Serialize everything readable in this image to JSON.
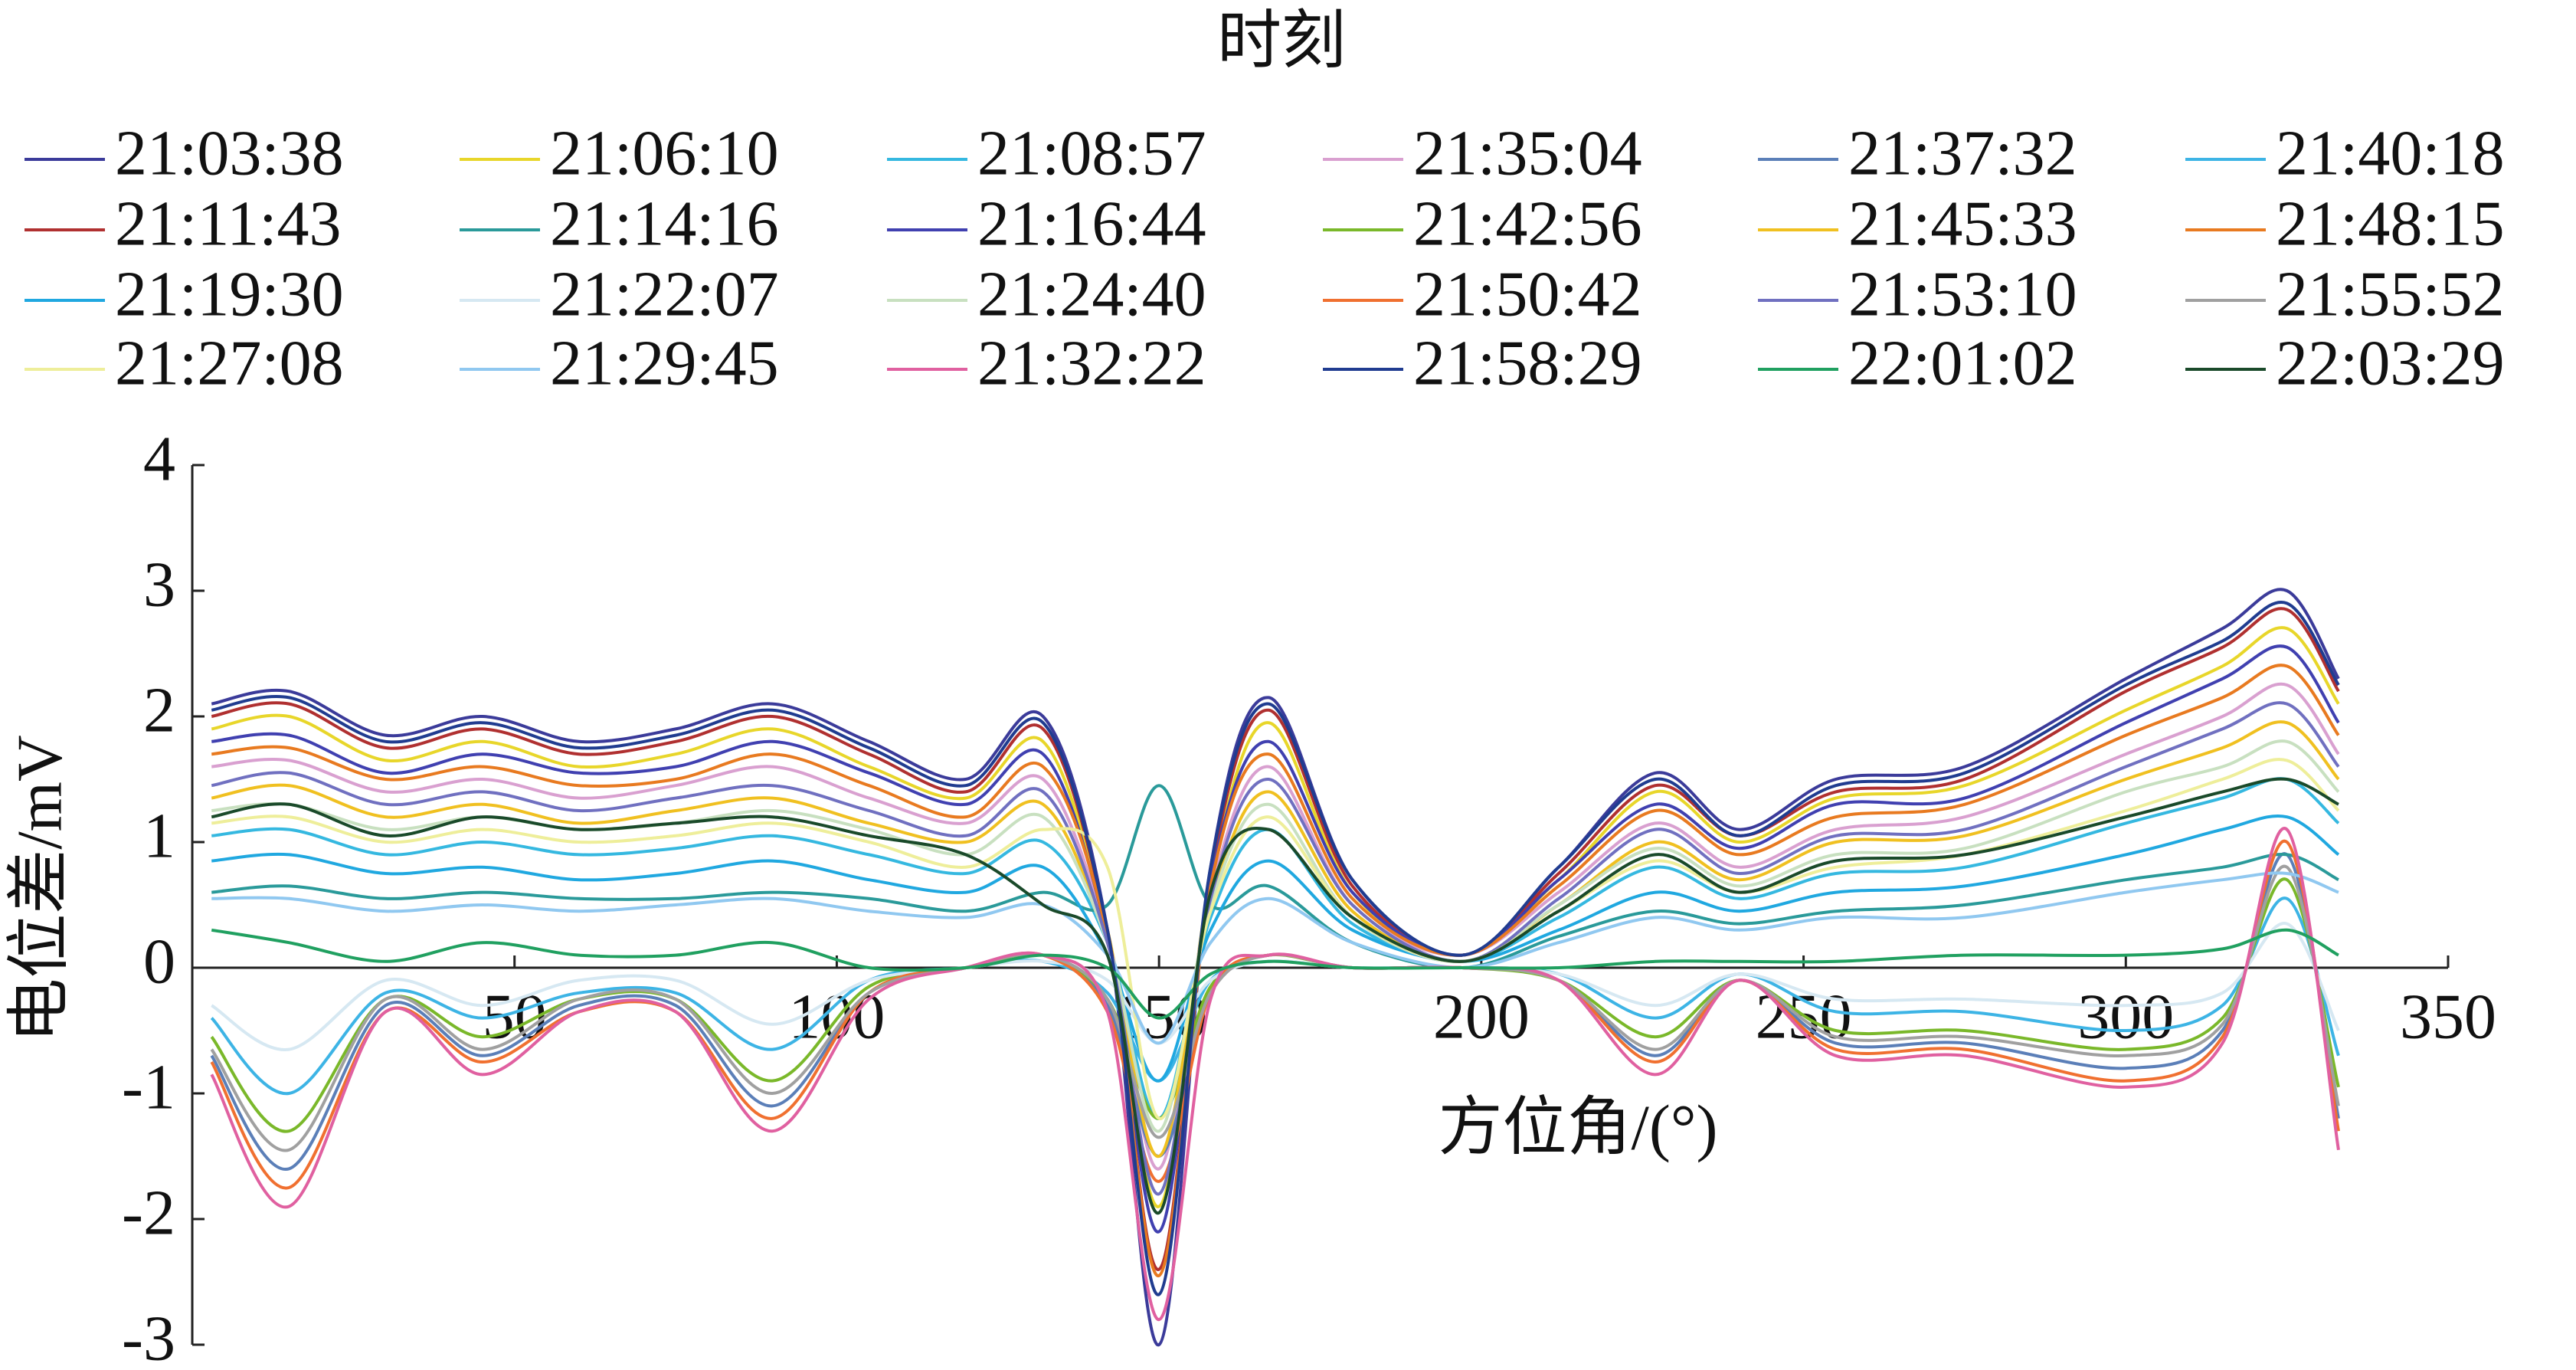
{
  "chart_data": {
    "type": "line",
    "legend_title": "时刻",
    "xlabel": "方位角/(°)",
    "ylabel": "电位差/mV",
    "xlim": [
      0,
      350
    ],
    "ylim": [
      -3,
      4
    ],
    "xticks": [
      50,
      100,
      150,
      200,
      250,
      300,
      350
    ],
    "yticks": [
      -3,
      -2,
      -1,
      0,
      1,
      2,
      3,
      4
    ],
    "x": [
      3,
      15,
      30,
      45,
      60,
      75,
      90,
      105,
      120,
      132,
      142,
      150,
      158,
      167,
      180,
      197,
      212,
      227,
      240,
      255,
      275,
      300,
      315,
      325,
      333
    ],
    "series": [
      {
        "name": "21:03:38",
        "color": "#3b3b9a",
        "values": [
          2.1,
          2.2,
          1.85,
          2.0,
          1.8,
          1.9,
          2.1,
          1.8,
          1.5,
          2.0,
          0.3,
          -3.0,
          0.8,
          2.15,
          0.7,
          0.1,
          0.8,
          1.55,
          1.1,
          1.5,
          1.6,
          2.3,
          2.7,
          3.0,
          2.3
        ]
      },
      {
        "name": "21:06:10",
        "color": "#e8d62a",
        "values": [
          1.9,
          2.0,
          1.65,
          1.8,
          1.6,
          1.7,
          1.9,
          1.6,
          1.35,
          1.8,
          0.3,
          -1.9,
          0.7,
          1.95,
          0.6,
          0.1,
          0.7,
          1.4,
          1.0,
          1.35,
          1.45,
          2.05,
          2.4,
          2.7,
          2.1
        ]
      },
      {
        "name": "21:08:57",
        "color": "#35b8e0",
        "values": [
          1.05,
          1.1,
          0.9,
          1.0,
          0.9,
          0.95,
          1.05,
          0.9,
          0.75,
          1.0,
          0.2,
          -1.2,
          0.4,
          1.1,
          0.35,
          0.05,
          0.4,
          0.8,
          0.55,
          0.75,
          0.8,
          1.15,
          1.35,
          1.5,
          1.15
        ]
      },
      {
        "name": "21:35:04",
        "color": "#d9a0d0",
        "values": [
          1.6,
          1.65,
          1.4,
          1.5,
          1.35,
          1.45,
          1.6,
          1.35,
          1.15,
          1.5,
          0.25,
          -1.6,
          0.6,
          1.6,
          0.5,
          0.1,
          0.6,
          1.15,
          0.8,
          1.1,
          1.2,
          1.7,
          2.0,
          2.25,
          1.7
        ]
      },
      {
        "name": "21:37:32",
        "color": "#5b7fb8",
        "values": [
          -0.7,
          -1.6,
          -0.3,
          -0.7,
          -0.3,
          -0.3,
          -1.1,
          -0.2,
          0,
          0.1,
          -0.3,
          -1.5,
          -0.2,
          0.1,
          0,
          0,
          -0.1,
          -0.7,
          -0.1,
          -0.6,
          -0.6,
          -0.8,
          -0.5,
          0.9,
          -1.2
        ]
      },
      {
        "name": "21:40:18",
        "color": "#3db4e5",
        "values": [
          -0.4,
          -1.0,
          -0.2,
          -0.4,
          -0.2,
          -0.2,
          -0.65,
          -0.1,
          0,
          0.05,
          -0.2,
          -0.9,
          -0.1,
          0.05,
          0,
          0,
          -0.05,
          -0.4,
          -0.05,
          -0.35,
          -0.35,
          -0.5,
          -0.3,
          0.55,
          -0.7
        ]
      },
      {
        "name": "21:11:43",
        "color": "#b03030",
        "values": [
          2.0,
          2.1,
          1.75,
          1.9,
          1.7,
          1.8,
          2.0,
          1.7,
          1.4,
          1.9,
          0.3,
          -2.4,
          0.75,
          2.05,
          0.65,
          0.1,
          0.75,
          1.45,
          1.05,
          1.4,
          1.5,
          2.2,
          2.55,
          2.85,
          2.2
        ]
      },
      {
        "name": "21:14:16",
        "color": "#2a9a9a",
        "values": [
          0.6,
          0.65,
          0.55,
          0.6,
          0.55,
          0.55,
          0.6,
          0.55,
          0.45,
          0.6,
          0.5,
          1.45,
          0.5,
          0.65,
          0.2,
          0,
          0.25,
          0.45,
          0.35,
          0.45,
          0.5,
          0.7,
          0.8,
          0.9,
          0.7
        ]
      },
      {
        "name": "21:16:44",
        "color": "#4040b0",
        "values": [
          1.8,
          1.85,
          1.55,
          1.7,
          1.55,
          1.6,
          1.8,
          1.55,
          1.3,
          1.7,
          0.25,
          -2.1,
          0.7,
          1.8,
          0.6,
          0.1,
          0.7,
          1.3,
          0.95,
          1.3,
          1.35,
          1.95,
          2.3,
          2.55,
          1.95
        ]
      },
      {
        "name": "21:42:56",
        "color": "#7ab82a",
        "values": [
          -0.55,
          -1.3,
          -0.25,
          -0.55,
          -0.25,
          -0.25,
          -0.9,
          -0.15,
          0,
          0.1,
          -0.25,
          -1.2,
          -0.15,
          0.1,
          0,
          0,
          -0.1,
          -0.55,
          -0.1,
          -0.5,
          -0.5,
          -0.65,
          -0.4,
          0.7,
          -0.95
        ]
      },
      {
        "name": "21:45:33",
        "color": "#f0c020",
        "values": [
          1.35,
          1.45,
          1.2,
          1.3,
          1.15,
          1.25,
          1.35,
          1.15,
          1.0,
          1.3,
          0.2,
          -1.5,
          0.5,
          1.4,
          0.45,
          0.05,
          0.5,
          1.0,
          0.7,
          1.0,
          1.05,
          1.5,
          1.75,
          1.95,
          1.5
        ]
      },
      {
        "name": "21:48:15",
        "color": "#e87a20",
        "values": [
          1.7,
          1.75,
          1.5,
          1.6,
          1.45,
          1.5,
          1.7,
          1.45,
          1.2,
          1.6,
          0.25,
          -2.45,
          0.65,
          1.7,
          0.55,
          0.1,
          0.65,
          1.25,
          0.9,
          1.2,
          1.3,
          1.85,
          2.15,
          2.4,
          1.85
        ]
      },
      {
        "name": "21:19:30",
        "color": "#20a8e0",
        "values": [
          0.85,
          0.9,
          0.75,
          0.8,
          0.7,
          0.75,
          0.85,
          0.7,
          0.6,
          0.8,
          0.1,
          -0.9,
          0.3,
          0.85,
          0.3,
          0.05,
          0.3,
          0.6,
          0.45,
          0.6,
          0.65,
          0.9,
          1.1,
          1.2,
          0.9
        ]
      },
      {
        "name": "21:22:07",
        "color": "#d6e8f2",
        "values": [
          -0.3,
          -0.65,
          -0.1,
          -0.3,
          -0.1,
          -0.1,
          -0.45,
          -0.1,
          0,
          0.05,
          -0.1,
          -0.6,
          -0.1,
          0.05,
          0,
          0,
          -0.05,
          -0.3,
          -0.05,
          -0.25,
          -0.25,
          -0.3,
          -0.2,
          0.35,
          -0.5
        ]
      },
      {
        "name": "21:24:40",
        "color": "#c8e0c0",
        "values": [
          1.25,
          1.3,
          1.1,
          1.2,
          1.1,
          1.15,
          1.25,
          1.1,
          0.9,
          1.2,
          0.2,
          -1.3,
          0.5,
          1.3,
          0.4,
          0.05,
          0.5,
          0.95,
          0.65,
          0.9,
          0.95,
          1.4,
          1.6,
          1.8,
          1.4
        ]
      },
      {
        "name": "21:50:42",
        "color": "#f07030",
        "values": [
          -0.75,
          -1.75,
          -0.35,
          -0.75,
          -0.35,
          -0.35,
          -1.2,
          -0.2,
          0,
          0.1,
          -0.35,
          -1.7,
          -0.2,
          0.1,
          0,
          0,
          -0.1,
          -0.75,
          -0.1,
          -0.65,
          -0.65,
          -0.9,
          -0.55,
          1.0,
          -1.3
        ]
      },
      {
        "name": "21:53:10",
        "color": "#7070c0",
        "values": [
          1.45,
          1.55,
          1.3,
          1.4,
          1.25,
          1.35,
          1.45,
          1.25,
          1.05,
          1.4,
          0.2,
          -1.8,
          0.55,
          1.5,
          0.5,
          0.05,
          0.55,
          1.1,
          0.75,
          1.05,
          1.1,
          1.6,
          1.9,
          2.1,
          1.6
        ]
      },
      {
        "name": "21:55:52",
        "color": "#a0a0a0",
        "values": [
          -0.65,
          -1.45,
          -0.25,
          -0.65,
          -0.25,
          -0.25,
          -1.0,
          -0.2,
          0,
          0.1,
          -0.25,
          -1.35,
          -0.2,
          0.1,
          0,
          0,
          -0.1,
          -0.65,
          -0.1,
          -0.55,
          -0.55,
          -0.7,
          -0.45,
          0.8,
          -1.1
        ]
      },
      {
        "name": "21:27:08",
        "color": "#eeee9a",
        "values": [
          1.15,
          1.2,
          1.0,
          1.1,
          1.0,
          1.05,
          1.15,
          1.0,
          0.8,
          1.1,
          0.8,
          -1.2,
          0.45,
          1.2,
          0.4,
          0.05,
          0.45,
          0.85,
          0.6,
          0.8,
          0.9,
          1.25,
          1.5,
          1.65,
          1.25
        ]
      },
      {
        "name": "21:29:45",
        "color": "#90c8f0",
        "values": [
          0.55,
          0.55,
          0.45,
          0.5,
          0.45,
          0.5,
          0.55,
          0.45,
          0.4,
          0.5,
          0.1,
          -0.6,
          0.2,
          0.55,
          0.2,
          0,
          0.2,
          0.4,
          0.3,
          0.4,
          0.4,
          0.6,
          0.7,
          0.75,
          0.6
        ]
      },
      {
        "name": "21:32:22",
        "color": "#e060a0",
        "values": [
          -0.85,
          -1.9,
          -0.35,
          -0.85,
          -0.35,
          -0.35,
          -1.3,
          -0.25,
          0,
          0.1,
          -0.35,
          -2.8,
          -0.25,
          0.1,
          0,
          0,
          -0.1,
          -0.85,
          -0.1,
          -0.7,
          -0.7,
          -0.95,
          -0.6,
          1.1,
          -1.45
        ]
      },
      {
        "name": "21:58:29",
        "color": "#203c90",
        "values": [
          2.05,
          2.15,
          1.8,
          1.95,
          1.75,
          1.85,
          2.05,
          1.75,
          1.45,
          1.95,
          0.3,
          -2.6,
          0.8,
          2.1,
          0.7,
          0.1,
          0.8,
          1.5,
          1.05,
          1.45,
          1.55,
          2.25,
          2.6,
          2.9,
          2.25
        ]
      },
      {
        "name": "22:01:02",
        "color": "#20a060",
        "values": [
          0.3,
          0.2,
          0.05,
          0.2,
          0.1,
          0.1,
          0.2,
          0,
          0,
          0.1,
          0,
          -0.4,
          -0.05,
          0.05,
          0,
          0,
          0,
          0.05,
          0.05,
          0.05,
          0.1,
          0.1,
          0.15,
          0.3,
          0.1
        ]
      },
      {
        "name": "22:03:29",
        "color": "#1a4a2a",
        "values": [
          1.2,
          1.3,
          1.05,
          1.2,
          1.1,
          1.15,
          1.2,
          1.05,
          0.9,
          0.5,
          0.1,
          -1.95,
          0.6,
          1.1,
          0.4,
          0.05,
          0.45,
          0.9,
          0.6,
          0.85,
          0.9,
          1.2,
          1.4,
          1.5,
          1.3
        ]
      }
    ]
  }
}
